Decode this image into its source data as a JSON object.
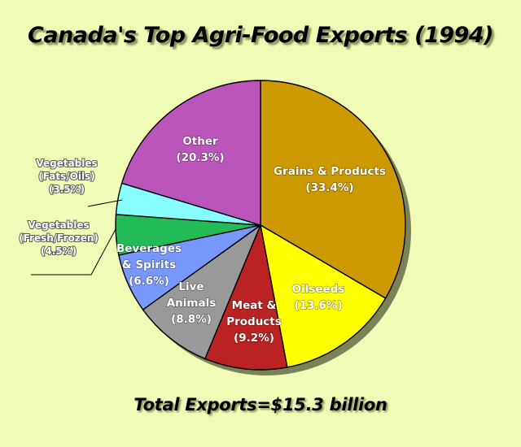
{
  "chart_data": {
    "type": "pie",
    "title": "Canada's Top Agri-Food Exports (1994)",
    "footer": "Total Exports=$15.3 billion",
    "slices": [
      {
        "label": [
          "Grains  & Products",
          "(33.4%)"
        ],
        "value": 33.4,
        "color": "#cc9900"
      },
      {
        "label": [
          "Oilseeds",
          "(13.6%)"
        ],
        "value": 13.6,
        "color": "#ffff00"
      },
      {
        "label": [
          "Meat &",
          "Products",
          "(9.2%)"
        ],
        "value": 9.2,
        "color": "#bb2222"
      },
      {
        "label": [
          "Live",
          "Animals",
          "(8.8%)"
        ],
        "value": 8.8,
        "color": "#999999"
      },
      {
        "label": [
          "Beverages",
          "& Spirits",
          "(6.6%)"
        ],
        "value": 6.6,
        "color": "#7799ff"
      },
      {
        "label": [
          "Vegetables",
          "(Fresh/Frozen)",
          "(4.5%)"
        ],
        "value": 4.5,
        "color": "#22bb55"
      },
      {
        "label": [
          "Vegetables",
          "(Fats/Oils)",
          "(3.5%)"
        ],
        "value": 3.5,
        "color": "#88ffff"
      },
      {
        "label": [
          "Other",
          "(20.3%)"
        ],
        "value": 20.3,
        "color": "#bb55bb"
      }
    ]
  }
}
